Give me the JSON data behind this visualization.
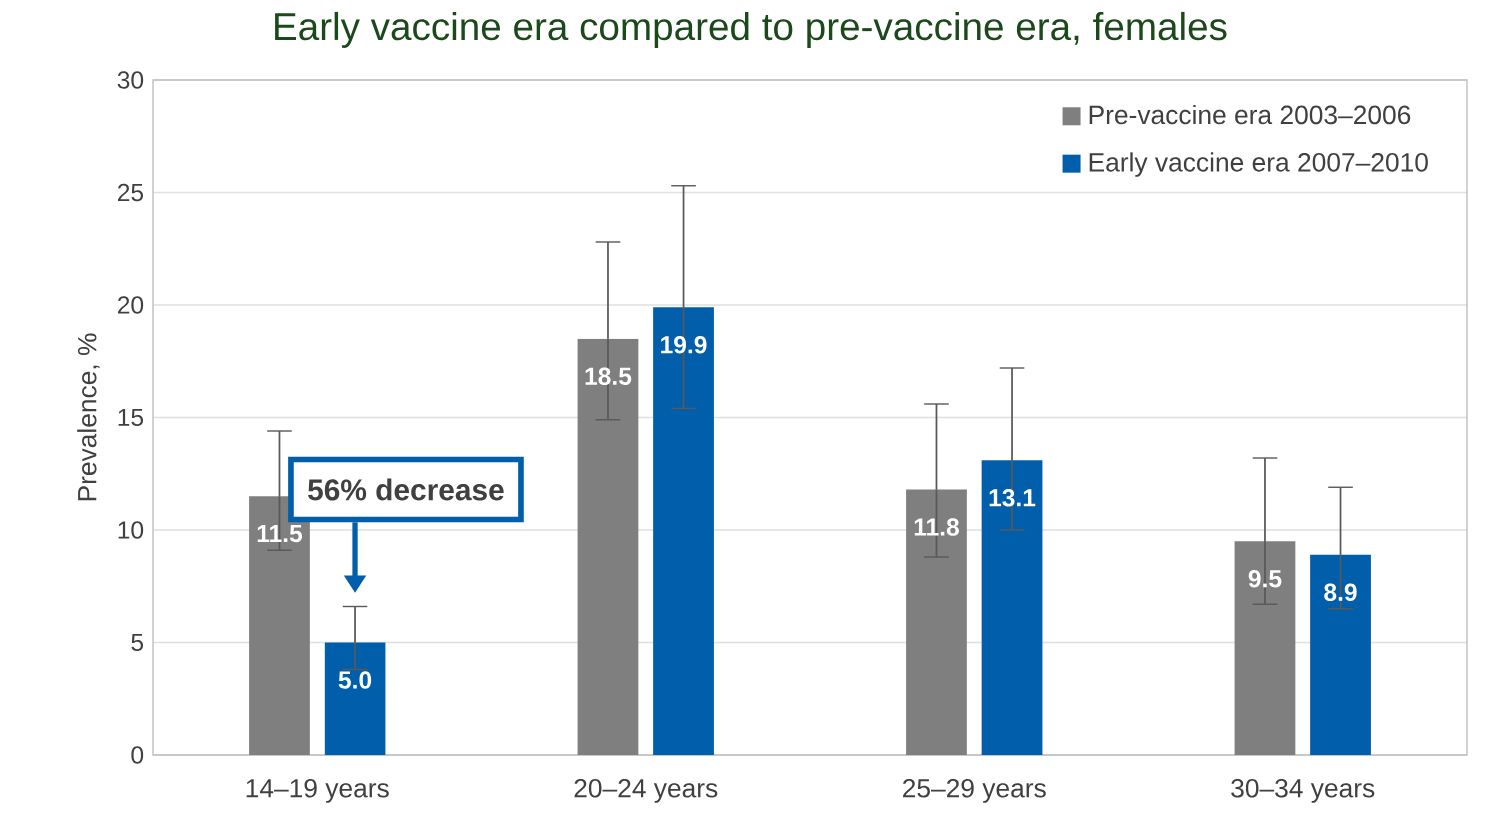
{
  "chart_data": {
    "type": "bar",
    "title": "Early vaccine era compared to pre-vaccine era, females",
    "ylabel": "Prevalence, %",
    "categories": [
      "14–19 years",
      "20–24 years",
      "25–29 years",
      "30–34 years"
    ],
    "series": [
      {
        "name": "Pre-vaccine era    2003–2006",
        "color": "#7f7f7f",
        "values": [
          11.5,
          18.5,
          11.8,
          9.5
        ],
        "value_labels": [
          "11.5",
          "18.5",
          "11.8",
          "9.5"
        ],
        "errors": [
          [
            9.1,
            14.4
          ],
          [
            14.9,
            22.8
          ],
          [
            8.8,
            15.6
          ],
          [
            6.7,
            13.2
          ]
        ]
      },
      {
        "name": "Early vaccine era 2007–2010",
        "color": "#005eaa",
        "values": [
          5.0,
          19.9,
          13.1,
          8.9
        ],
        "value_labels": [
          "5.0",
          "19.9",
          "13.1",
          "8.9"
        ],
        "errors": [
          [
            3.8,
            6.6
          ],
          [
            15.4,
            25.3
          ],
          [
            10.0,
            17.2
          ],
          [
            6.5,
            11.9
          ]
        ]
      }
    ],
    "annotations": [
      "56% decrease"
    ],
    "ylim": [
      0,
      30
    ],
    "yticks": [
      0,
      5,
      10,
      15,
      20,
      25,
      30
    ],
    "grid": "y",
    "legend": "top right"
  }
}
